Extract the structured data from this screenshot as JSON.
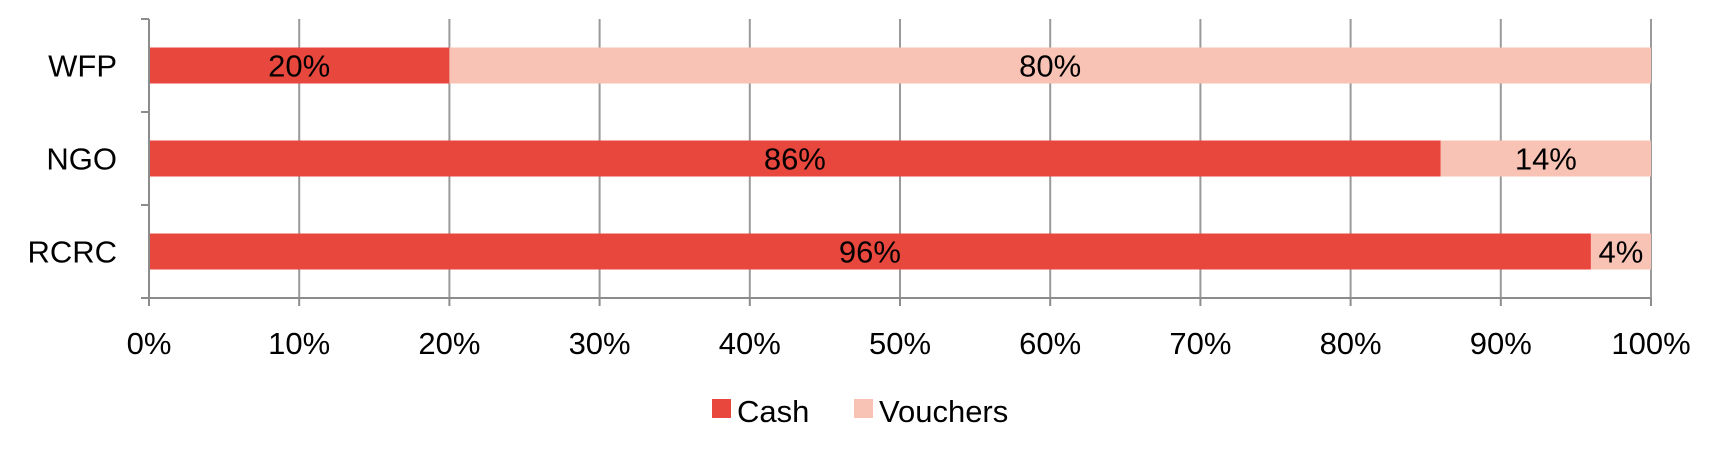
{
  "chart_data": {
    "type": "bar",
    "orientation": "horizontal",
    "stacked": "percent",
    "categories": [
      "WFP",
      "NGO",
      "RCRC"
    ],
    "series": [
      {
        "name": "Cash",
        "color": "#E8473E",
        "values": [
          20,
          86,
          96
        ],
        "labels": [
          "20%",
          "86%",
          "96%"
        ]
      },
      {
        "name": "Vouchers",
        "color": "#F8C2B5",
        "values": [
          80,
          14,
          4
        ],
        "labels": [
          "80%",
          "14%",
          "4%"
        ]
      }
    ],
    "xlim": [
      0,
      100
    ],
    "xticks": [
      0,
      10,
      20,
      30,
      40,
      50,
      60,
      70,
      80,
      90,
      100
    ],
    "xtick_labels": [
      "0%",
      "10%",
      "20%",
      "30%",
      "40%",
      "50%",
      "60%",
      "70%",
      "80%",
      "90%",
      "100%"
    ],
    "grid": "vertical",
    "legend_position": "bottom",
    "title": "",
    "xlabel": "",
    "ylabel": ""
  }
}
